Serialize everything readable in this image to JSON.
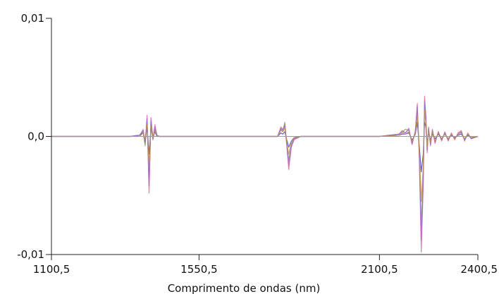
{
  "chart_data": {
    "type": "line",
    "title": "",
    "xlabel": "Comprimento de ondas (nm)",
    "ylabel": "",
    "xlim": [
      1100.5,
      2400.5
    ],
    "ylim": [
      -0.01,
      0.01
    ],
    "x_ticks": [
      {
        "value": 1100.5,
        "label": "1100,5"
      },
      {
        "value": 1550.5,
        "label": "1550,5"
      },
      {
        "value": 2100.5,
        "label": "2100,5"
      },
      {
        "value": 2400.5,
        "label": "2400,5"
      }
    ],
    "y_ticks": [
      {
        "value": 0.01,
        "label": "0,01"
      },
      {
        "value": 0.0,
        "label": "0,0"
      },
      {
        "value": -0.01,
        "label": "-0,01"
      }
    ],
    "grid": false,
    "legend": "none",
    "series_colors": [
      "#e0609a",
      "#7a9a52",
      "#3a3ad0",
      "#9a6ad8",
      "#c89040",
      "#40a0a0",
      "#8a8a8a",
      "#d06060",
      "#2a2a2a"
    ],
    "x": [
      1100.5,
      1340,
      1370,
      1380,
      1386,
      1392,
      1398,
      1404,
      1410,
      1416,
      1422,
      1430,
      1440,
      1460,
      1480,
      1500,
      1760,
      1790,
      1800,
      1806,
      1812,
      1818,
      1824,
      1832,
      1840,
      1860,
      1880,
      2100.5,
      2160,
      2170,
      2180,
      2190,
      2200,
      2210,
      2216,
      2222,
      2228,
      2234,
      2238,
      2242,
      2246,
      2250,
      2256,
      2262,
      2270,
      2280,
      2290,
      2300,
      2310,
      2320,
      2330,
      2340,
      2350,
      2360,
      2370,
      2380,
      2400.5
    ],
    "series": [
      {
        "values": [
          0,
          0,
          0.0001,
          0.0006,
          -0.0006,
          0.0018,
          -0.0048,
          0.0016,
          -0.0002,
          0.001,
          0.0001,
          0,
          0,
          0,
          0,
          0,
          0,
          0,
          0.0008,
          0.0006,
          0.001,
          -0.0008,
          -0.0028,
          -0.0009,
          -0.0003,
          0,
          0,
          0,
          0.0002,
          0.0005,
          0.0003,
          0.0007,
          -0.0007,
          0.0005,
          0.0028,
          -0.0018,
          -0.0098,
          -0.0042,
          0.0034,
          0.0018,
          -0.0014,
          0.0008,
          -0.0008,
          0.0006,
          -0.0006,
          0.0004,
          -0.0004,
          0.0004,
          -0.0004,
          0.0003,
          -0.0003,
          0.0003,
          0.0005,
          -0.0004,
          0.0003,
          -0.0002,
          0
        ]
      },
      {
        "values": [
          0,
          0,
          0.0001,
          0.0004,
          -0.0008,
          0.0012,
          -0.0035,
          0.0012,
          -0.0003,
          0.0006,
          0.0001,
          0,
          0,
          0,
          0,
          0,
          0,
          0,
          0.0006,
          0.0004,
          0.0012,
          -0.0006,
          -0.002,
          -0.0007,
          -0.0002,
          0,
          0,
          0,
          0.0002,
          0.0004,
          0.0006,
          0.0005,
          -0.0005,
          0.0004,
          0.0022,
          -0.0014,
          -0.0075,
          -0.0032,
          0.0025,
          0.0014,
          -0.0011,
          0.0006,
          -0.0006,
          0.0005,
          -0.0004,
          0.0003,
          -0.0003,
          0.0003,
          -0.0003,
          0.0002,
          -0.0002,
          0.0002,
          0.0004,
          -0.0003,
          0.0002,
          -0.0001,
          0
        ]
      },
      {
        "values": [
          0,
          0,
          0.0001,
          0.0003,
          -0.0004,
          0.0008,
          -0.0015,
          0.0007,
          -0.0001,
          0.0004,
          0,
          0,
          0,
          0,
          0,
          0,
          0,
          0,
          0.0003,
          0.0002,
          0.0004,
          -0.0003,
          -0.0009,
          -0.0004,
          -0.0001,
          0,
          0,
          0,
          0.0001,
          0.0002,
          0.0002,
          0.0003,
          -0.0003,
          0.0002,
          0.0012,
          -0.0008,
          -0.003,
          -0.0015,
          0.0012,
          0.0008,
          -0.0006,
          0.0003,
          -0.0003,
          0.0002,
          -0.0002,
          0.0002,
          -0.0002,
          0.0002,
          -0.0002,
          0.0001,
          -0.0001,
          0.0001,
          0.0002,
          -0.0002,
          0.0001,
          -0.0001,
          0
        ]
      },
      {
        "values": [
          0,
          0,
          0.0001,
          0.0005,
          -0.0005,
          0.0015,
          -0.0042,
          0.0014,
          -0.0002,
          0.0008,
          0.0001,
          0,
          0,
          0,
          0,
          0,
          0,
          0,
          0.0007,
          0.0005,
          0.0009,
          -0.0007,
          -0.0024,
          -0.0008,
          -0.0002,
          0,
          0,
          0,
          0.0002,
          0.0004,
          0.0003,
          0.0006,
          -0.0006,
          0.0004,
          0.0025,
          -0.0016,
          -0.0088,
          -0.0038,
          0.003,
          0.0016,
          -0.0012,
          0.0007,
          -0.0007,
          0.0005,
          -0.0005,
          0.0004,
          -0.0003,
          0.0003,
          -0.0003,
          0.0002,
          -0.0002,
          0.0002,
          0.0004,
          -0.0003,
          0.0002,
          -0.0002,
          0
        ]
      },
      {
        "values": [
          0,
          0,
          0,
          0.0003,
          -0.0003,
          0.001,
          -0.0025,
          0.0009,
          -0.0001,
          0.0005,
          0,
          0,
          0,
          0,
          0,
          0,
          0,
          0,
          0.0005,
          0.0004,
          0.0007,
          -0.0005,
          -0.0015,
          -0.0005,
          -0.0001,
          0,
          0,
          0,
          0.0001,
          0.0003,
          0.0002,
          0.0004,
          -0.0004,
          0.0003,
          0.0018,
          -0.0011,
          -0.0055,
          -0.0025,
          0.0022,
          0.0011,
          -0.0009,
          0.0005,
          -0.0005,
          0.0004,
          -0.0004,
          0.0003,
          -0.0002,
          0.0002,
          -0.0002,
          0.0002,
          -0.0002,
          0.0002,
          0.0003,
          -0.0002,
          0.0002,
          -0.0001,
          0
        ]
      }
    ]
  }
}
